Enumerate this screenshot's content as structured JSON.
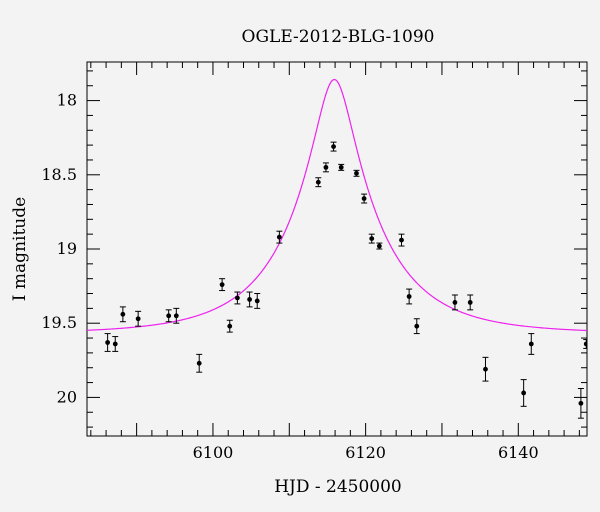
{
  "chart_data": {
    "type": "scatter",
    "title": "OGLE-2012-BLG-1090",
    "xlabel": "HJD - 2450000",
    "ylabel": "I magnitude",
    "xlim": [
      6083.5,
      6149
    ],
    "ylim": [
      20.26,
      17.74
    ],
    "y_inverted": true,
    "x_major_ticks": [
      6100,
      6120,
      6140
    ],
    "y_major_ticks": [
      18,
      18.5,
      19,
      19.5,
      20
    ],
    "x_tick_labels": [
      "6100",
      "6120",
      "6140"
    ],
    "y_tick_labels": [
      "18",
      "18.5",
      "19",
      "19.5",
      "20"
    ],
    "x_minor_step": 2,
    "y_minor_step": 0.1,
    "colors": {
      "model": "#ee22ee",
      "points": "#000000",
      "background": "#f3f3f3"
    },
    "series": [
      {
        "type": "scatter-errorbar",
        "points": [
          {
            "x": 6086.2,
            "y": 19.63,
            "err": 0.06
          },
          {
            "x": 6087.2,
            "y": 19.64,
            "err": 0.05
          },
          {
            "x": 6088.2,
            "y": 19.44,
            "err": 0.05
          },
          {
            "x": 6090.2,
            "y": 19.47,
            "err": 0.05
          },
          {
            "x": 6094.2,
            "y": 19.45,
            "err": 0.04
          },
          {
            "x": 6095.2,
            "y": 19.45,
            "err": 0.05
          },
          {
            "x": 6098.2,
            "y": 19.77,
            "err": 0.06
          },
          {
            "x": 6101.2,
            "y": 19.24,
            "err": 0.04
          },
          {
            "x": 6102.2,
            "y": 19.52,
            "err": 0.04
          },
          {
            "x": 6103.2,
            "y": 19.33,
            "err": 0.04
          },
          {
            "x": 6104.8,
            "y": 19.34,
            "err": 0.05
          },
          {
            "x": 6105.8,
            "y": 19.35,
            "err": 0.05
          },
          {
            "x": 6108.7,
            "y": 18.92,
            "err": 0.04
          },
          {
            "x": 6113.8,
            "y": 18.55,
            "err": 0.03
          },
          {
            "x": 6114.8,
            "y": 18.45,
            "err": 0.03
          },
          {
            "x": 6115.8,
            "y": 18.31,
            "err": 0.03
          },
          {
            "x": 6116.8,
            "y": 18.45,
            "err": 0.02
          },
          {
            "x": 6118.8,
            "y": 18.49,
            "err": 0.02
          },
          {
            "x": 6119.8,
            "y": 18.66,
            "err": 0.03
          },
          {
            "x": 6120.8,
            "y": 18.93,
            "err": 0.03
          },
          {
            "x": 6121.8,
            "y": 18.98,
            "err": 0.02
          },
          {
            "x": 6124.7,
            "y": 18.94,
            "err": 0.04
          },
          {
            "x": 6125.7,
            "y": 19.32,
            "err": 0.05
          },
          {
            "x": 6126.7,
            "y": 19.52,
            "err": 0.05
          },
          {
            "x": 6131.7,
            "y": 19.36,
            "err": 0.05
          },
          {
            "x": 6133.7,
            "y": 19.36,
            "err": 0.05
          },
          {
            "x": 6135.7,
            "y": 19.81,
            "err": 0.08
          },
          {
            "x": 6140.7,
            "y": 19.97,
            "err": 0.09
          },
          {
            "x": 6141.7,
            "y": 19.64,
            "err": 0.07
          },
          {
            "x": 6148.2,
            "y": 20.04,
            "err": 0.1
          },
          {
            "x": 6148.9,
            "y": 19.64,
            "err": 0.03
          }
        ]
      },
      {
        "type": "line",
        "model": {
          "t0": 6115.9,
          "u0": 0.21,
          "tE": 11.5,
          "baseline_mag": 19.57,
          "x_start": 6083.5,
          "x_end": 6149,
          "samples": 400
        }
      }
    ]
  }
}
